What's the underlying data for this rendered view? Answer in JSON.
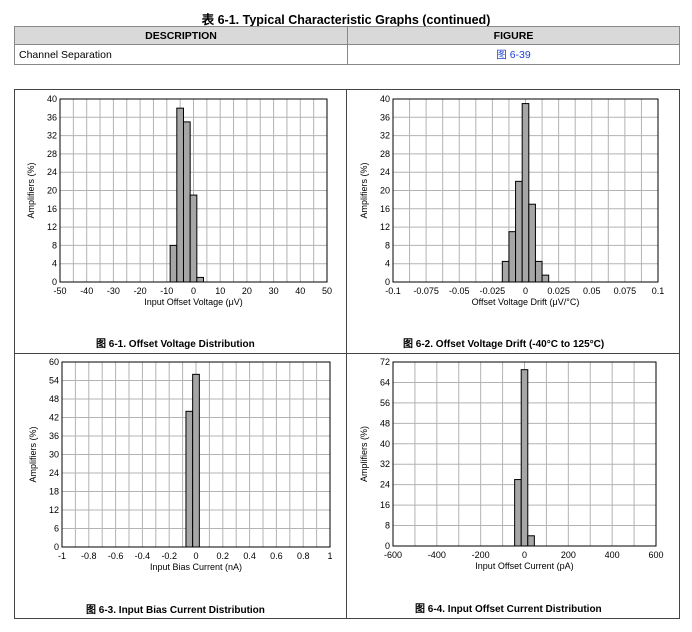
{
  "header": {
    "title": "表 6-1. Typical Characteristic Graphs (continued)"
  },
  "reference_table": {
    "columns": [
      "DESCRIPTION",
      "FIGURE"
    ],
    "rows": [
      {
        "description": "Channel Separation",
        "figure": "图 6-39"
      }
    ]
  },
  "colors": {
    "bar_fill": "#a6a6a6",
    "bar_stroke": "#000000",
    "grid": "#b3b3b3",
    "link": "#1f3fd1"
  },
  "chart_data": [
    {
      "type": "bar",
      "caption": "图 6-1. Offset Voltage Distribution",
      "xlabel": "Input Offset Voltage (μV)",
      "ylabel": "Amplifiers (%)",
      "xlim": [
        -50,
        50
      ],
      "ylim": [
        0,
        40
      ],
      "xticks": [
        "-50",
        "-40",
        "-30",
        "-20",
        "-10",
        "0",
        "10",
        "20",
        "30",
        "40",
        "50"
      ],
      "yticks": [
        "0",
        "4",
        "8",
        "12",
        "16",
        "20",
        "24",
        "28",
        "32",
        "36",
        "40"
      ],
      "bin_width": 2.5,
      "bins": [
        {
          "x": -7.5,
          "value": 8
        },
        {
          "x": -5,
          "value": 38
        },
        {
          "x": -2.5,
          "value": 35
        },
        {
          "x": 0,
          "value": 19
        },
        {
          "x": 2.5,
          "value": 1
        }
      ],
      "grid": true
    },
    {
      "type": "bar",
      "caption": "图 6-2. Offset Voltage Drift (-40°C to 125°C)",
      "xlabel": "Offset Voltage Drift (μV/°C)",
      "ylabel": "Amplifiers (%)",
      "xlim": [
        -0.1,
        0.1
      ],
      "ylim": [
        0,
        40
      ],
      "xticks": [
        "-0.1",
        "-0.075",
        "-0.05",
        "-0.025",
        "0",
        "0.025",
        "0.05",
        "0.075",
        "0.1"
      ],
      "yticks": [
        "0",
        "4",
        "8",
        "12",
        "16",
        "20",
        "24",
        "28",
        "32",
        "36",
        "40"
      ],
      "bin_width": 0.005,
      "bins": [
        {
          "x": -0.015,
          "value": 4.5
        },
        {
          "x": -0.01,
          "value": 11
        },
        {
          "x": -0.005,
          "value": 22
        },
        {
          "x": 0,
          "value": 39
        },
        {
          "x": 0.005,
          "value": 17
        },
        {
          "x": 0.01,
          "value": 4.5
        },
        {
          "x": 0.015,
          "value": 1.5
        }
      ],
      "grid": true
    },
    {
      "type": "bar",
      "caption": "图 6-3. Input Bias Current Distribution",
      "xlabel": "Input Bias Current (nA)",
      "ylabel": "Amplifiers (%)",
      "xlim": [
        -1,
        1
      ],
      "ylim": [
        0,
        60
      ],
      "xticks": [
        "-1",
        "-0.8",
        "-0.6",
        "-0.4",
        "-0.2",
        "0",
        "0.2",
        "0.4",
        "0.6",
        "0.8",
        "1"
      ],
      "yticks": [
        "0",
        "6",
        "12",
        "18",
        "24",
        "30",
        "36",
        "42",
        "48",
        "54",
        "60"
      ],
      "bin_width": 0.05,
      "bins": [
        {
          "x": -0.05,
          "value": 44
        },
        {
          "x": 0,
          "value": 56
        }
      ],
      "grid": true
    },
    {
      "type": "bar",
      "caption": "图 6-4. Input Offset Current Distribution",
      "xlabel": "Input Offset Current (pA)",
      "ylabel": "Amplifiers (%)",
      "xlim": [
        -600,
        600
      ],
      "ylim": [
        0,
        72
      ],
      "xticks": [
        "-600",
        "-400",
        "-200",
        "0",
        "200",
        "400",
        "600"
      ],
      "yticks": [
        "0",
        "8",
        "16",
        "24",
        "32",
        "40",
        "48",
        "56",
        "64",
        "72"
      ],
      "bin_width": 30,
      "bins": [
        {
          "x": -30,
          "value": 26
        },
        {
          "x": 0,
          "value": 69
        },
        {
          "x": 30,
          "value": 4
        }
      ],
      "grid": true
    }
  ]
}
